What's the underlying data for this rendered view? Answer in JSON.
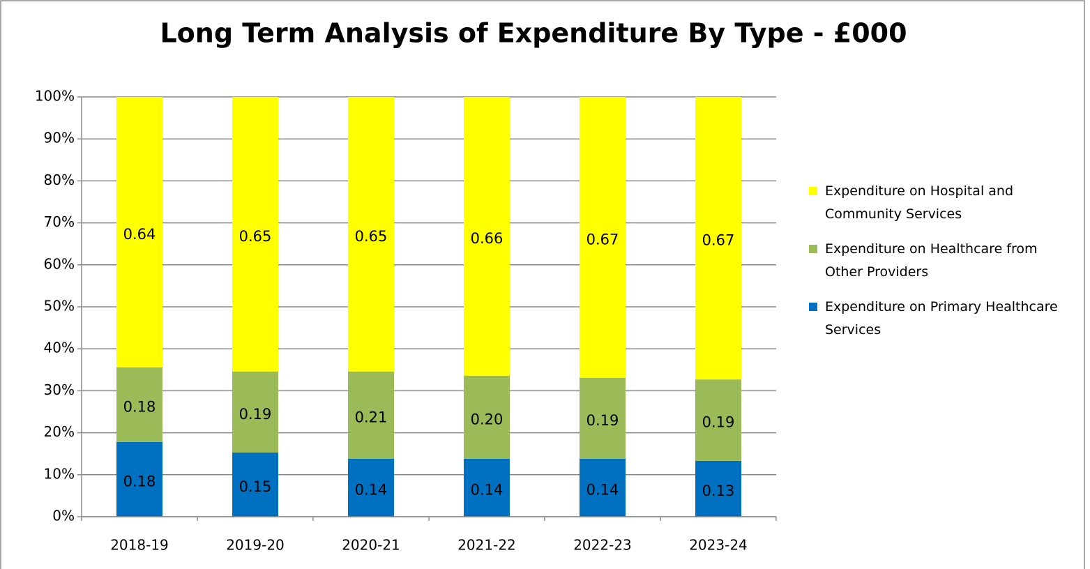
{
  "chart_data": {
    "type": "stacked_bar",
    "title": "Long Term Analysis of Expenditure By Type - £000",
    "categories": [
      "2018-19",
      "2019-20",
      "2020-21",
      "2021-22",
      "2022-23",
      "2023-24"
    ],
    "series": [
      {
        "name": "Expenditure on Primary Healthcare Services",
        "color": "#0070c0",
        "values": [
          17.8,
          15.3,
          13.8,
          13.8,
          13.8,
          13.3
        ],
        "value_labels": [
          "0.18",
          "0.15",
          "0.14",
          "0.14",
          "0.14",
          "0.13"
        ]
      },
      {
        "name": "Expenditure on Healthcare from Other Providers",
        "color": "#9bbb59",
        "values": [
          17.8,
          19.3,
          20.8,
          19.8,
          19.3,
          19.4
        ],
        "value_labels": [
          "0.18",
          "0.19",
          "0.21",
          "0.20",
          "0.19",
          "0.19"
        ]
      },
      {
        "name": "Expenditure on Hospital and Community Services",
        "color": "#ffff00",
        "values": [
          64.4,
          65.4,
          65.4,
          66.4,
          66.9,
          67.3
        ],
        "value_labels": [
          "0.64",
          "0.65",
          "0.65",
          "0.66",
          "0.67",
          "0.67"
        ]
      }
    ],
    "ylim": [
      0,
      100
    ],
    "yticks": [
      {
        "value": 0,
        "label": "0%"
      },
      {
        "value": 10,
        "label": "10%"
      },
      {
        "value": 20,
        "label": "20%"
      },
      {
        "value": 30,
        "label": "30%"
      },
      {
        "value": 40,
        "label": "40%"
      },
      {
        "value": 50,
        "label": "50%"
      },
      {
        "value": 60,
        "label": "60%"
      },
      {
        "value": 70,
        "label": "70%"
      },
      {
        "value": 80,
        "label": "80%"
      },
      {
        "value": 90,
        "label": "90%"
      },
      {
        "value": 100,
        "label": "100%"
      }
    ],
    "grid": true,
    "legend": "right"
  }
}
